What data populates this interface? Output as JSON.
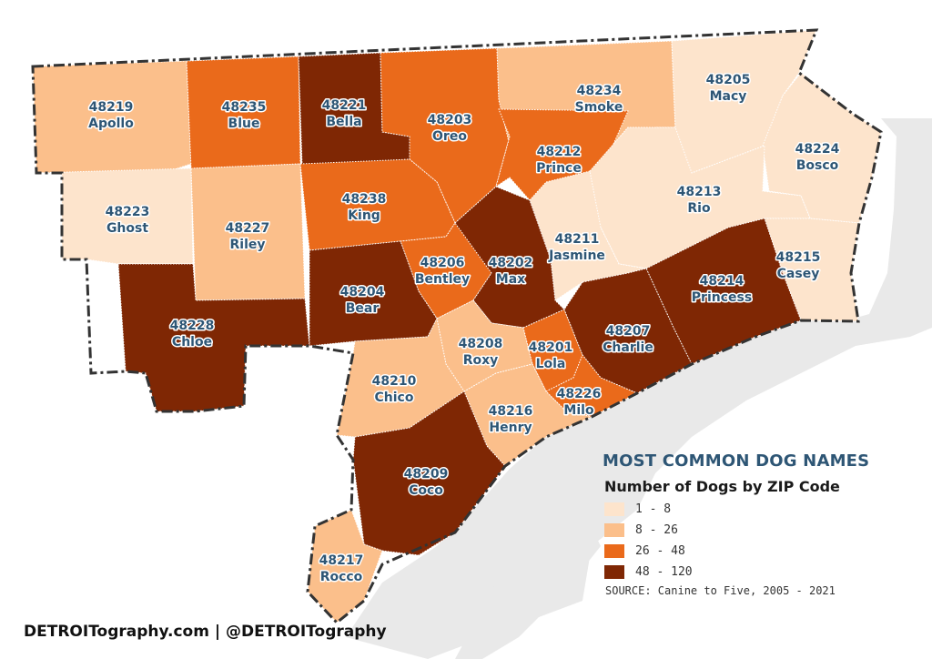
{
  "title": "MOST COMMON DOG NAMES",
  "subtitle": "Number of Dogs by ZIP Code",
  "legend": [
    {
      "label": "1 - 8",
      "color": "#fde4cc"
    },
    {
      "label": "8 - 26",
      "color": "#fbbf8b"
    },
    {
      "label": "26 - 48",
      "color": "#ea6a1b"
    },
    {
      "label": "48 - 120",
      "color": "#7f2704"
    }
  ],
  "source": "SOURCE: Canine to Five, 2005 - 2021",
  "credit": "DETROITography.com | @DETROITography",
  "colors": {
    "label": "#2e5675",
    "water": "#e9e9e9",
    "boundary": "#333333"
  },
  "zips": [
    {
      "zip": "48219",
      "name": "Apollo",
      "class": 1
    },
    {
      "zip": "48235",
      "name": "Blue",
      "class": 2
    },
    {
      "zip": "48221",
      "name": "Bella",
      "class": 3
    },
    {
      "zip": "48203",
      "name": "Oreo",
      "class": 2
    },
    {
      "zip": "48234",
      "name": "Smoke",
      "class": 1
    },
    {
      "zip": "48205",
      "name": "Macy",
      "class": 0
    },
    {
      "zip": "48212",
      "name": "Prince",
      "class": 2
    },
    {
      "zip": "48224",
      "name": "Bosco",
      "class": 0
    },
    {
      "zip": "48223",
      "name": "Ghost",
      "class": 0
    },
    {
      "zip": "48227",
      "name": "Riley",
      "class": 1
    },
    {
      "zip": "48238",
      "name": "King",
      "class": 2
    },
    {
      "zip": "48213",
      "name": "Rio",
      "class": 0
    },
    {
      "zip": "48211",
      "name": "Jasmine",
      "class": 0
    },
    {
      "zip": "48215",
      "name": "Casey",
      "class": 0
    },
    {
      "zip": "48206",
      "name": "Bentley",
      "class": 2
    },
    {
      "zip": "48202",
      "name": "Max",
      "class": 3
    },
    {
      "zip": "48214",
      "name": "Princess",
      "class": 3
    },
    {
      "zip": "48204",
      "name": "Bear",
      "class": 3
    },
    {
      "zip": "48228",
      "name": "Chloe",
      "class": 3
    },
    {
      "zip": "48208",
      "name": "Roxy",
      "class": 1
    },
    {
      "zip": "48201",
      "name": "Lola",
      "class": 2
    },
    {
      "zip": "48207",
      "name": "Charlie",
      "class": 3
    },
    {
      "zip": "48210",
      "name": "Chico",
      "class": 1
    },
    {
      "zip": "48226",
      "name": "Milo",
      "class": 2
    },
    {
      "zip": "48216",
      "name": "Henry",
      "class": 1
    },
    {
      "zip": "48209",
      "name": "Coco",
      "class": 3
    },
    {
      "zip": "48217",
      "name": "Rocco",
      "class": 1
    }
  ]
}
